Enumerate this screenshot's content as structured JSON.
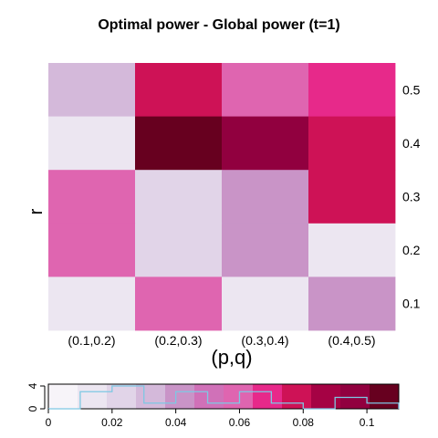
{
  "chart_data": {
    "type": "heatmap",
    "title": "Optimal power - Global power (t=1)",
    "xlabel": "(p,q)",
    "ylabel": "r",
    "x_categories": [
      "(0.1,0.2)",
      "(0.2,0.3)",
      "(0.3,0.4)",
      "(0.4,0.5)"
    ],
    "y_categories": [
      "0.5",
      "0.4",
      "0.3",
      "0.2",
      "0.1"
    ],
    "cells": [
      [
        0.035,
        0.075,
        0.06,
        0.07
      ],
      [
        0.01,
        0.11,
        0.095,
        0.08
      ],
      [
        0.055,
        0.025,
        0.04,
        0.08
      ],
      [
        0.055,
        0.025,
        0.04,
        0.01
      ],
      [
        0.01,
        0.055,
        0.01,
        0.04
      ]
    ],
    "merged_note": "",
    "color_key": {
      "range": [
        0,
        0.11
      ],
      "ticks": [
        "0",
        "0.02",
        "0.04",
        "0.06",
        "0.08",
        "0.1"
      ],
      "tick_values": [
        0,
        0.02,
        0.04,
        0.06,
        0.08,
        0.1
      ],
      "histogram_axis_ticks": [
        "0",
        "4"
      ],
      "histogram_axis_values": [
        0,
        4
      ],
      "colors": [
        "#f7f4f9",
        "#ece6f1",
        "#e1d4e8",
        "#d4b9da",
        "#c994c7",
        "#d071b8",
        "#df65b0",
        "#e7298a",
        "#ce1256",
        "#a50244",
        "#91003f",
        "#67001f"
      ],
      "histogram_bins": [
        0,
        0.01,
        0.02,
        0.03,
        0.04,
        0.05,
        0.06,
        0.07,
        0.08,
        0.09,
        0.1,
        0.11
      ],
      "histogram_counts": [
        0,
        3,
        4,
        1,
        3,
        1,
        3,
        1,
        0,
        2,
        1,
        1
      ],
      "histogram_color": "#7ec8e3"
    }
  }
}
